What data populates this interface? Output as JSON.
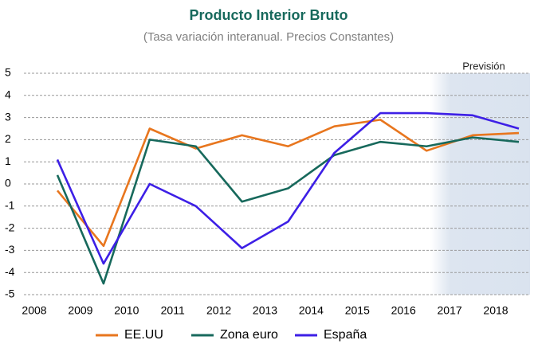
{
  "chart_data": {
    "type": "line",
    "title": "Producto Interior Bruto",
    "subtitle": "(Tasa variación interanual. Precios Constantes)",
    "annotation": "Previsión",
    "categories": [
      "2008",
      "2009",
      "2010",
      "2011",
      "2012",
      "2013",
      "2014",
      "2015",
      "2016",
      "2017",
      "2018"
    ],
    "series": [
      {
        "name": "EE.UU",
        "color": "#e8761e",
        "values": [
          -0.3,
          -2.8,
          2.5,
          1.6,
          2.2,
          1.7,
          2.6,
          2.9,
          1.5,
          2.2,
          2.3
        ]
      },
      {
        "name": "Zona euro",
        "color": "#17695c",
        "values": [
          0.4,
          -4.5,
          2.0,
          1.7,
          -0.8,
          -0.2,
          1.3,
          1.9,
          1.7,
          2.1,
          1.9
        ]
      },
      {
        "name": "España",
        "color": "#3d1fe6",
        "values": [
          1.1,
          -3.6,
          0.0,
          -1.0,
          -2.9,
          -1.7,
          1.4,
          3.2,
          3.2,
          3.1,
          2.5
        ]
      }
    ],
    "ylim": [
      -5,
      5
    ],
    "yticks": [
      -5,
      -4,
      -3,
      -2,
      -1,
      0,
      1,
      2,
      3,
      4,
      5
    ],
    "grid": true
  }
}
